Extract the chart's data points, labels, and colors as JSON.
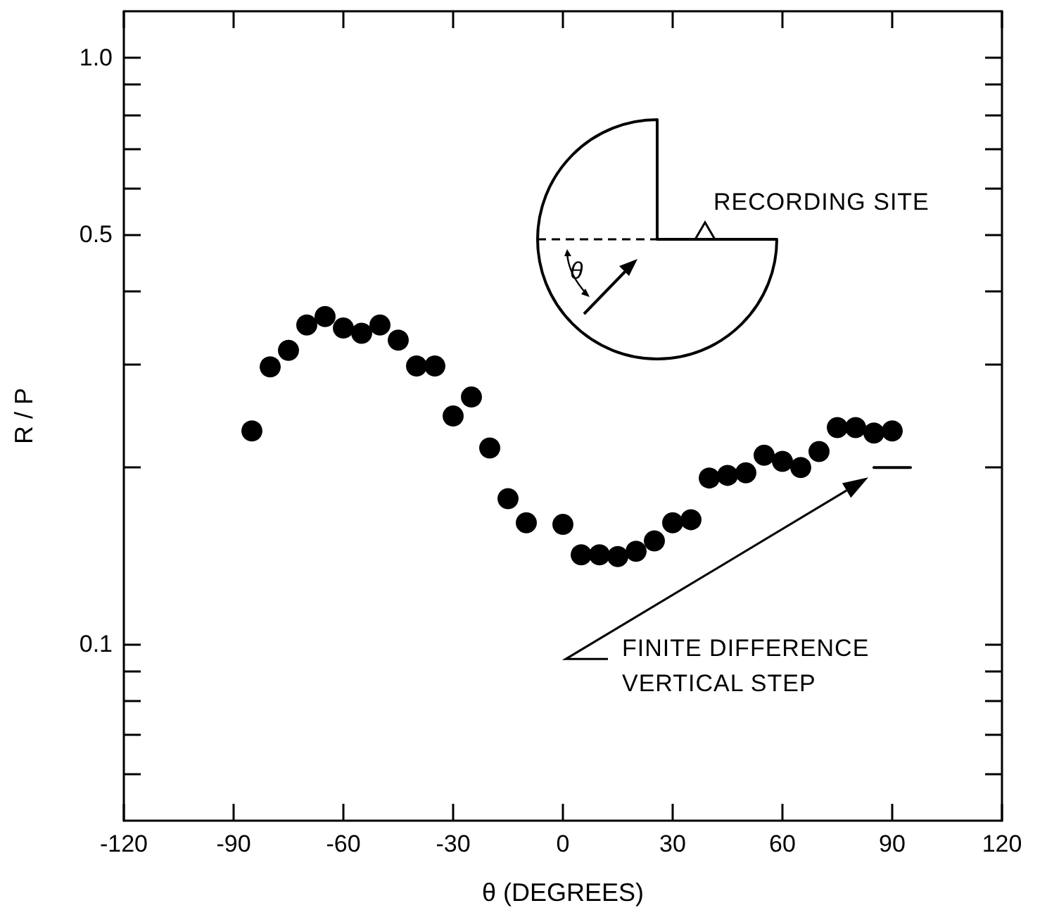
{
  "chart_data": {
    "type": "scatter",
    "xlabel": "θ (DEGREES)",
    "ylabel": "R / P",
    "x": [
      -85,
      -80,
      -75,
      -70,
      -65,
      -60,
      -55,
      -50,
      -45,
      -40,
      -35,
      -30,
      -25,
      -20,
      -15,
      -10,
      0,
      5,
      10,
      15,
      20,
      25,
      30,
      35,
      40,
      45,
      50,
      55,
      60,
      65,
      70,
      75,
      80,
      85,
      90
    ],
    "series": [
      {
        "color": "#000000",
        "marker": "circle",
        "values": [
          0.231,
          0.297,
          0.317,
          0.35,
          0.362,
          0.346,
          0.339,
          0.35,
          0.33,
          0.298,
          0.298,
          0.245,
          0.264,
          0.216,
          0.177,
          0.161,
          0.16,
          0.142,
          0.142,
          0.141,
          0.144,
          0.15,
          0.161,
          0.163,
          0.192,
          0.194,
          0.196,
          0.21,
          0.205,
          0.2,
          0.213,
          0.234,
          0.234,
          0.229,
          0.231
        ]
      },
      {
        "type": "line",
        "color": "#000000",
        "x": [
          85,
          95
        ],
        "values": [
          0.2,
          0.2
        ]
      }
    ],
    "xlim": [
      -120,
      120
    ],
    "xticks": [
      -120,
      -90,
      -60,
      -30,
      0,
      30,
      60,
      90,
      120
    ],
    "ylim": [
      0.05,
      1.2
    ],
    "yticks": [
      {
        "value": 0.06,
        "label": null
      },
      {
        "value": 0.07,
        "label": null
      },
      {
        "value": 0.08,
        "label": null
      },
      {
        "value": 0.09,
        "label": null
      },
      0.1,
      {
        "value": 0.2,
        "label": null
      },
      {
        "value": 0.3,
        "label": null
      },
      {
        "value": 0.4,
        "label": null
      },
      0.5,
      {
        "value": 0.6,
        "label": null
      },
      {
        "value": 0.7,
        "label": null
      },
      {
        "value": 0.8,
        "label": null
      },
      {
        "value": 0.9,
        "label": null
      },
      {
        "value": 1,
        "label": "1.0"
      }
    ],
    "log": "y",
    "grid": false,
    "annotations": [
      "RECORDING SITE",
      "θ",
      "FINITE DIFFERENCE VERTICAL STEP"
    ]
  }
}
